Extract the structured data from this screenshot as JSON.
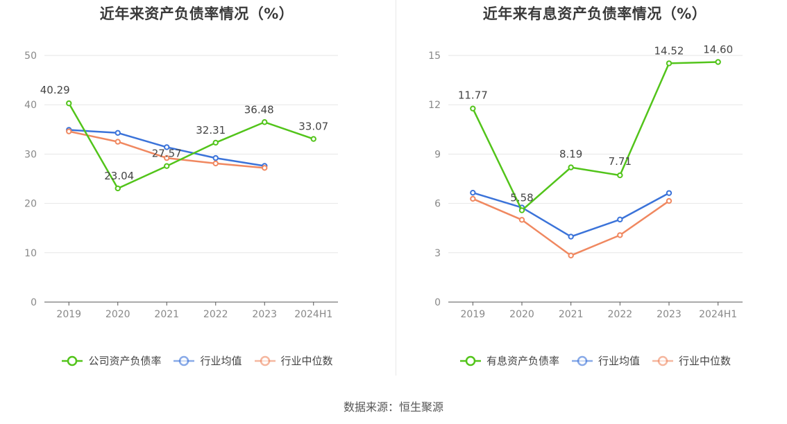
{
  "source": "数据来源：恒生聚源",
  "colors": {
    "company": "#52c41a",
    "avg": "#3b73d9",
    "median": "#f08860",
    "grid": "#e6e6e6",
    "axis": "#555555",
    "tick": "#888888",
    "label": "#444444"
  },
  "chart_data": [
    {
      "type": "line",
      "title": "近年来资产负债率情况（%）",
      "categories": [
        "2019",
        "2020",
        "2021",
        "2022",
        "2023",
        "2024H1"
      ],
      "ylim": [
        0,
        50
      ],
      "yticks": [
        0,
        10,
        20,
        30,
        40,
        50
      ],
      "grid": true,
      "legend_position": "bottom",
      "series": [
        {
          "name": "公司资产负债率",
          "color_key": "company",
          "values": [
            40.29,
            23.04,
            27.57,
            32.31,
            36.48,
            33.07
          ],
          "labels": [
            "40.29",
            "23.04",
            "27.57",
            "32.31",
            "36.48",
            "33.07"
          ]
        },
        {
          "name": "行业均值",
          "color_key": "avg",
          "values": [
            34.9,
            34.3,
            31.4,
            29.2,
            27.6,
            null
          ]
        },
        {
          "name": "行业中位数",
          "color_key": "median",
          "values": [
            34.6,
            32.5,
            29.2,
            28.1,
            27.2,
            null
          ]
        }
      ]
    },
    {
      "type": "line",
      "title": "近年来有息资产负债率情况（%）",
      "categories": [
        "2019",
        "2020",
        "2021",
        "2022",
        "2023",
        "2024H1"
      ],
      "ylim": [
        0,
        15
      ],
      "yticks": [
        0,
        3,
        6,
        9,
        12,
        15
      ],
      "grid": true,
      "legend_position": "bottom",
      "series": [
        {
          "name": "有息资产负债率",
          "color_key": "company",
          "values": [
            11.77,
            5.58,
            8.19,
            7.71,
            14.52,
            14.6
          ],
          "labels": [
            "11.77",
            "5.58",
            "8.19",
            "7.71",
            "14.52",
            "14.60"
          ]
        },
        {
          "name": "行业均值",
          "color_key": "avg",
          "values": [
            6.65,
            5.75,
            3.98,
            5.02,
            6.63,
            null
          ]
        },
        {
          "name": "行业中位数",
          "color_key": "median",
          "values": [
            6.28,
            5.0,
            2.83,
            4.07,
            6.15,
            null
          ]
        }
      ]
    }
  ]
}
